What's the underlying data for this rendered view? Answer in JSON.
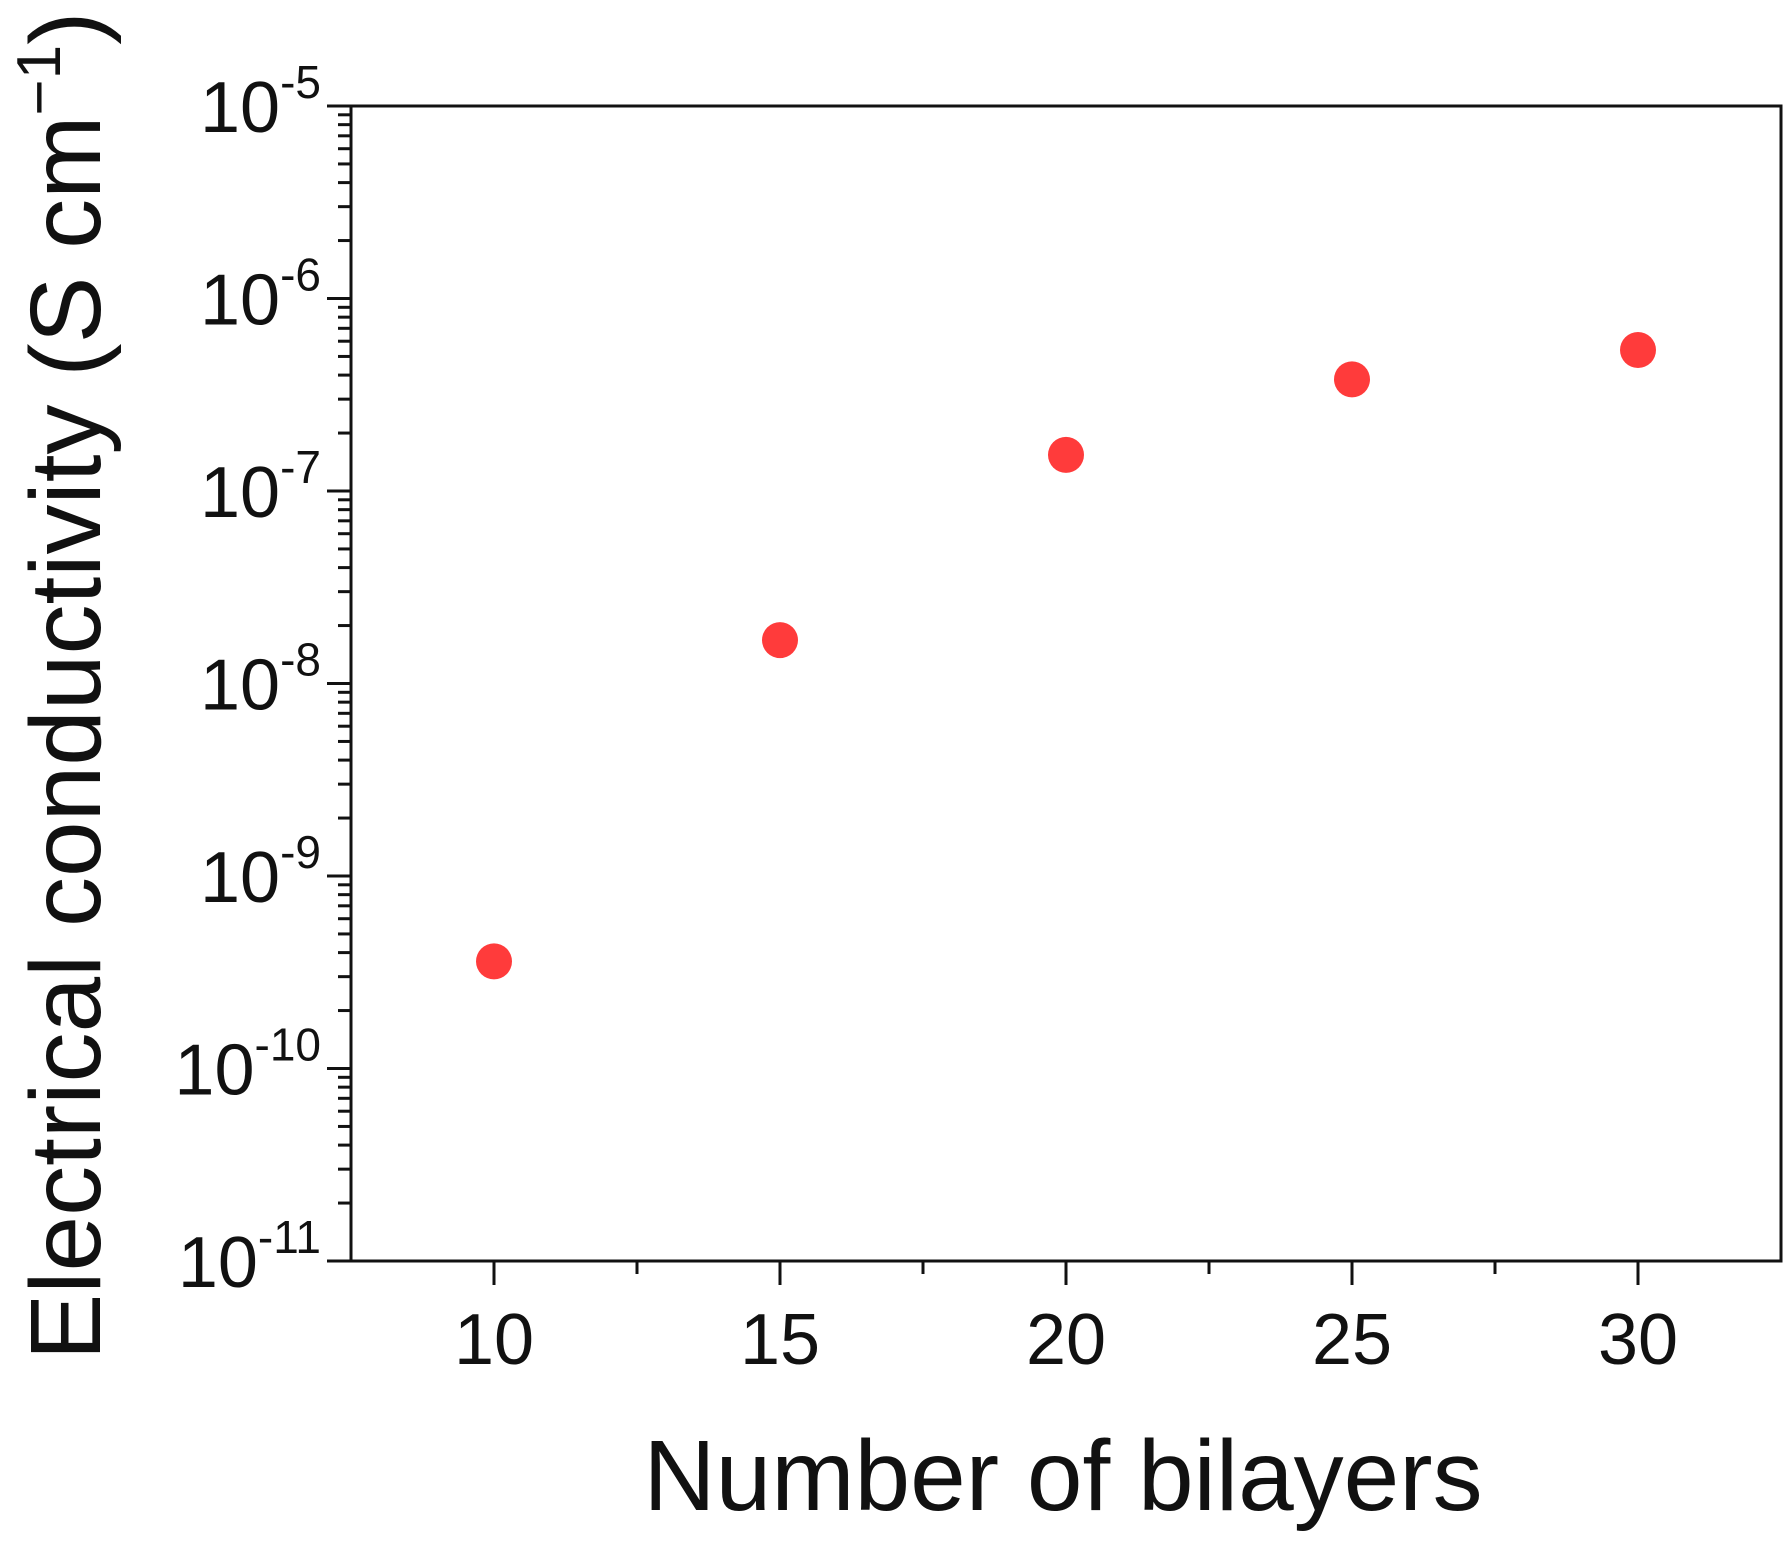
{
  "chart_data": {
    "type": "scatter",
    "xlabel": "Number of bilayers",
    "ylabel": {
      "text": "Electrical conductivity (S cm",
      "superscript": "−1",
      "close": ")"
    },
    "x": [
      10,
      15,
      20,
      25,
      30
    ],
    "series": [
      {
        "color": "#ff3b3b",
        "values": [
          3.6e-10,
          1.68e-08,
          1.54e-07,
          3.8e-07,
          5.4e-07
        ]
      }
    ],
    "xlim": [
      7.5,
      32.5
    ],
    "xticks": [
      10,
      15,
      20,
      25,
      30
    ],
    "xminor_ticks": [
      12.5,
      17.5,
      22.5,
      27.5
    ],
    "ylim": [
      1e-11,
      1e-05
    ],
    "ylog": true,
    "yticks": [
      {
        "value": 1e-11,
        "label": "10",
        "exponent": "-11"
      },
      {
        "value": 1e-10,
        "label": "10",
        "exponent": "-10"
      },
      {
        "value": 1e-09,
        "label": "10",
        "exponent": "-9"
      },
      {
        "value": 1e-08,
        "label": "10",
        "exponent": "-8"
      },
      {
        "value": 1e-07,
        "label": "10",
        "exponent": "-7"
      },
      {
        "value": 1e-06,
        "label": "10",
        "exponent": "-6"
      },
      {
        "value": 1e-05,
        "label": "10",
        "exponent": "-5"
      }
    ],
    "yminor_ticks": [
      2e-11,
      3e-11,
      4e-11,
      5e-11,
      6e-11,
      7e-11,
      8e-11,
      9e-11,
      2e-10,
      3e-10,
      4e-10,
      5e-10,
      6e-10,
      7e-10,
      8e-10,
      9e-10,
      2e-09,
      3e-09,
      4e-09,
      5e-09,
      6e-09,
      7e-09,
      8e-09,
      9e-09,
      2e-08,
      3e-08,
      4e-08,
      5e-08,
      6e-08,
      7e-08,
      8e-08,
      9e-08,
      2e-07,
      3e-07,
      4e-07,
      5e-07,
      6e-07,
      7e-07,
      8e-07,
      9e-07,
      2e-06,
      3e-06,
      4e-06,
      5e-06,
      6e-06,
      7e-06,
      8e-06,
      9e-06
    ],
    "grid": false
  }
}
